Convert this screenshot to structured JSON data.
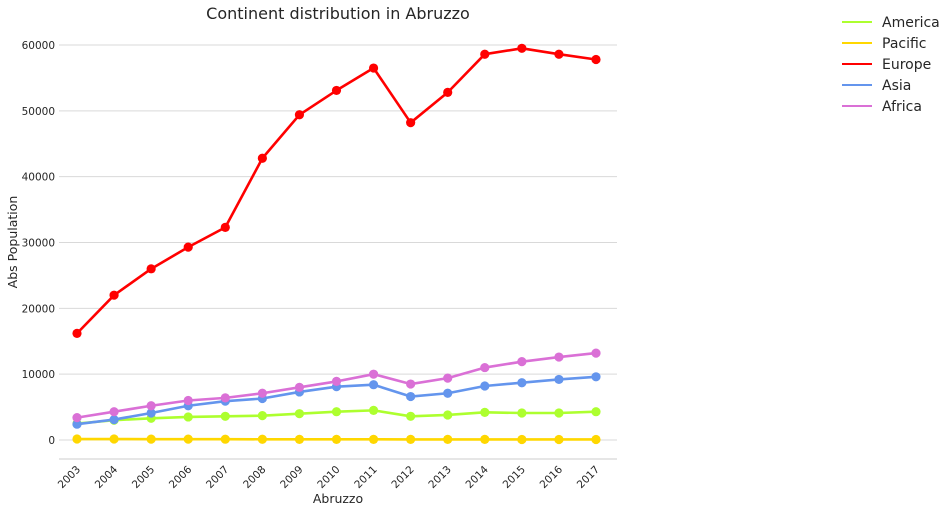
{
  "chart_data": {
    "type": "line",
    "title": "Continent distribution in Abruzzo",
    "xlabel": "Abruzzo",
    "ylabel": "Abs Population",
    "categories": [
      "2003",
      "2004",
      "2005",
      "2006",
      "2007",
      "2008",
      "2009",
      "2010",
      "2011",
      "2012",
      "2013",
      "2014",
      "2015",
      "2016",
      "2017"
    ],
    "ylim": [
      -3000,
      62000
    ],
    "yticks": [
      0,
      10000,
      20000,
      30000,
      40000,
      50000,
      60000
    ],
    "ytick_labels": [
      "0",
      "10000",
      "20000",
      "30000",
      "40000",
      "50000",
      "60000"
    ],
    "grid": "horizontal",
    "legend_position": "outside top-right",
    "series": [
      {
        "name": "America",
        "color": "#adff2f",
        "values": [
          2500,
          3000,
          3300,
          3500,
          3600,
          3700,
          4000,
          4300,
          4500,
          3600,
          3800,
          4200,
          4100,
          4100,
          4300
        ]
      },
      {
        "name": "Pacific",
        "color": "#ffd700",
        "values": [
          150,
          150,
          130,
          130,
          120,
          110,
          100,
          100,
          100,
          90,
          90,
          90,
          80,
          80,
          80
        ]
      },
      {
        "name": "Europe",
        "color": "#ff0000",
        "values": [
          16200,
          22000,
          26000,
          29300,
          32300,
          42800,
          49400,
          53100,
          56500,
          48200,
          52800,
          58600,
          59500,
          58600,
          57800
        ]
      },
      {
        "name": "Asia",
        "color": "#6495ed",
        "values": [
          2400,
          3100,
          4100,
          5200,
          5900,
          6300,
          7300,
          8100,
          8400,
          6600,
          7100,
          8200,
          8700,
          9200,
          9600
        ]
      },
      {
        "name": "Africa",
        "color": "#da70d6",
        "values": [
          3400,
          4300,
          5200,
          6000,
          6400,
          7100,
          8000,
          8900,
          10000,
          8500,
          9400,
          11000,
          11900,
          12600,
          13200
        ]
      }
    ]
  }
}
